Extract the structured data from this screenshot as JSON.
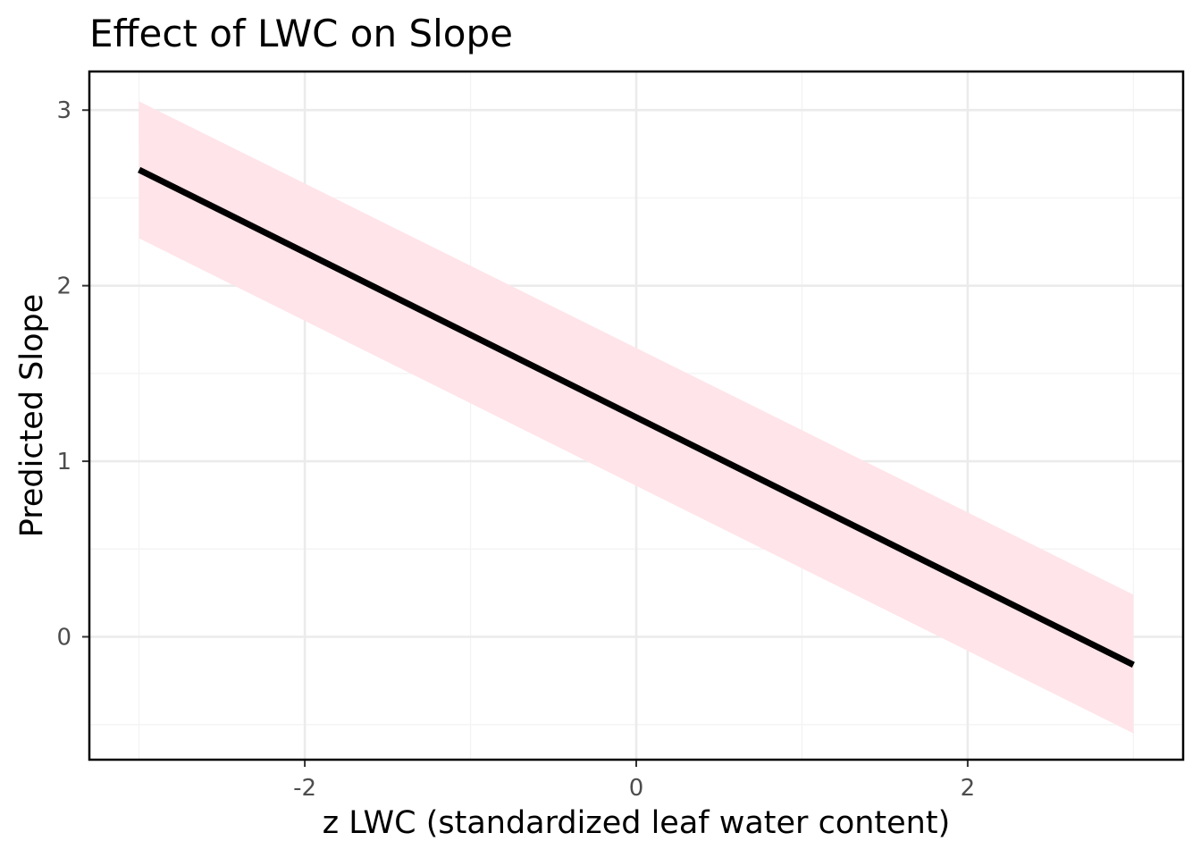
{
  "chart_data": {
    "type": "line",
    "title": "Effect of LWC on Slope",
    "xlabel": "z LWC (standardized leaf water content)",
    "ylabel": "Predicted Slope",
    "xlim": [
      -3.3,
      3.3
    ],
    "ylim": [
      -0.7,
      3.22
    ],
    "x_ticks": [
      -2,
      0,
      2
    ],
    "x_tick_labels": [
      "-2",
      "0",
      "2"
    ],
    "y_ticks": [
      0,
      1,
      2,
      3
    ],
    "y_tick_labels": [
      "0",
      "1",
      "2",
      "3"
    ],
    "x_minor_grid": [
      -3,
      -1,
      1,
      3
    ],
    "y_minor_grid": [
      -0.5,
      0.5,
      1.5,
      2.5
    ],
    "grid": true,
    "legend": "none",
    "series": [
      {
        "x": [
          -3.0,
          3.0
        ],
        "y": [
          2.66,
          -0.16
        ],
        "lower": [
          2.27,
          -0.55
        ],
        "upper": [
          3.05,
          0.24
        ]
      }
    ],
    "colors": {
      "line": "#000000",
      "ribbon": "#ffe4e9",
      "grid_major": "#ebebeb",
      "grid_minor": "#f3f3f3",
      "panel_border": "#000000",
      "tick_text": "#4d4d4d"
    }
  }
}
